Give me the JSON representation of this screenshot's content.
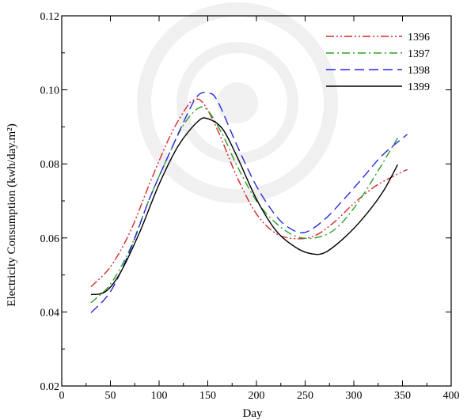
{
  "chart_data": {
    "type": "line",
    "xlabel": "Day",
    "ylabel": "Electricity Consumption (kwh/day.m²)",
    "xlim": [
      0,
      400
    ],
    "ylim": [
      0.02,
      0.12
    ],
    "x_ticks": [
      0,
      50,
      100,
      150,
      200,
      250,
      300,
      350,
      400
    ],
    "x_tick_labels": [
      "0",
      "50",
      "100",
      "150",
      "200",
      "250",
      "300",
      "350",
      "400"
    ],
    "y_ticks": [
      0.02,
      0.04,
      0.06,
      0.08,
      0.1,
      0.12
    ],
    "y_tick_labels": [
      "0.02",
      "0.04",
      "0.06",
      "0.08",
      "0.10",
      "0.12"
    ],
    "grid": false,
    "legend_position": "top-right",
    "series": [
      {
        "name": "1396",
        "color": "#d62728",
        "style": "dash-dot-dot",
        "points": [
          [
            30,
            0.0468
          ],
          [
            50,
            0.0522
          ],
          [
            70,
            0.0615
          ],
          [
            90,
            0.0745
          ],
          [
            110,
            0.0868
          ],
          [
            125,
            0.094
          ],
          [
            135,
            0.0972
          ],
          [
            145,
            0.0965
          ],
          [
            160,
            0.0892
          ],
          [
            180,
            0.0765
          ],
          [
            200,
            0.0665
          ],
          [
            220,
            0.0612
          ],
          [
            240,
            0.0598
          ],
          [
            260,
            0.0606
          ],
          [
            280,
            0.0643
          ],
          [
            300,
            0.0693
          ],
          [
            320,
            0.0736
          ],
          [
            340,
            0.0766
          ],
          [
            355,
            0.0785
          ]
        ]
      },
      {
        "name": "1397",
        "color": "#2ca02c",
        "style": "dash-dot",
        "points": [
          [
            30,
            0.0425
          ],
          [
            50,
            0.0475
          ],
          [
            70,
            0.057
          ],
          [
            90,
            0.0705
          ],
          [
            110,
            0.0825
          ],
          [
            125,
            0.0905
          ],
          [
            140,
            0.095
          ],
          [
            150,
            0.0944
          ],
          [
            165,
            0.088
          ],
          [
            180,
            0.0795
          ],
          [
            200,
            0.07
          ],
          [
            220,
            0.064
          ],
          [
            240,
            0.0605
          ],
          [
            260,
            0.06
          ],
          [
            280,
            0.0622
          ],
          [
            300,
            0.068
          ],
          [
            320,
            0.076
          ],
          [
            345,
            0.087
          ]
        ]
      },
      {
        "name": "1398",
        "color": "#2828e0",
        "style": "dashed",
        "points": [
          [
            30,
            0.0398
          ],
          [
            50,
            0.0455
          ],
          [
            70,
            0.0565
          ],
          [
            90,
            0.0705
          ],
          [
            110,
            0.0825
          ],
          [
            130,
            0.094
          ],
          [
            140,
            0.0985
          ],
          [
            150,
            0.0992
          ],
          [
            160,
            0.097
          ],
          [
            180,
            0.085
          ],
          [
            200,
            0.074
          ],
          [
            220,
            0.066
          ],
          [
            235,
            0.0625
          ],
          [
            250,
            0.0615
          ],
          [
            270,
            0.065
          ],
          [
            290,
            0.0705
          ],
          [
            310,
            0.0765
          ],
          [
            330,
            0.0825
          ],
          [
            355,
            0.088
          ]
        ]
      },
      {
        "name": "1399",
        "color": "#000000",
        "style": "solid",
        "points": [
          [
            30,
            0.0447
          ],
          [
            45,
            0.0455
          ],
          [
            60,
            0.0505
          ],
          [
            80,
            0.0615
          ],
          [
            100,
            0.0745
          ],
          [
            120,
            0.085
          ],
          [
            140,
            0.0915
          ],
          [
            150,
            0.0922
          ],
          [
            165,
            0.0895
          ],
          [
            180,
            0.082
          ],
          [
            200,
            0.0705
          ],
          [
            220,
            0.062
          ],
          [
            240,
            0.0575
          ],
          [
            255,
            0.0558
          ],
          [
            270,
            0.056
          ],
          [
            290,
            0.06
          ],
          [
            310,
            0.0655
          ],
          [
            330,
            0.0725
          ],
          [
            345,
            0.0798
          ]
        ]
      }
    ]
  }
}
